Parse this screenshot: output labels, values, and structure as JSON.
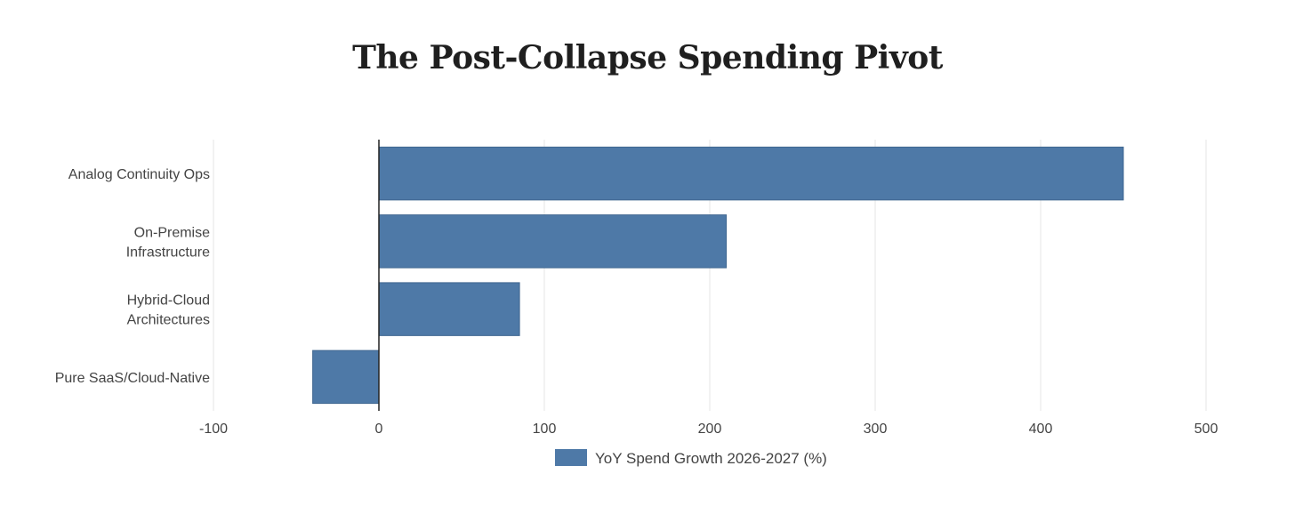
{
  "chart_data": {
    "type": "bar",
    "orientation": "horizontal",
    "title": "The Post-Collapse Spending Pivot",
    "categories": [
      "Analog Continuity Ops",
      "On-Premise Infrastructure",
      "Hybrid-Cloud Architectures",
      "Pure SaaS/Cloud-Native"
    ],
    "category_lines": [
      [
        "Analog Continuity Ops"
      ],
      [
        "On-Premise",
        "Infrastructure"
      ],
      [
        "Hybrid-Cloud",
        "Architectures"
      ],
      [
        "Pure SaaS/Cloud-Native"
      ]
    ],
    "series": [
      {
        "name": "YoY Spend Growth 2026-2027 (%)",
        "values": [
          450,
          210,
          85,
          -40
        ],
        "color": "#4e79a7"
      }
    ],
    "xlim": [
      -100,
      500
    ],
    "xticks": [
      -100,
      0,
      100,
      200,
      300,
      400,
      500
    ],
    "xtick_labels": [
      "-100",
      "0",
      "100",
      "200",
      "300",
      "400",
      "500"
    ],
    "grid": true,
    "legend_position": "bottom-center"
  }
}
